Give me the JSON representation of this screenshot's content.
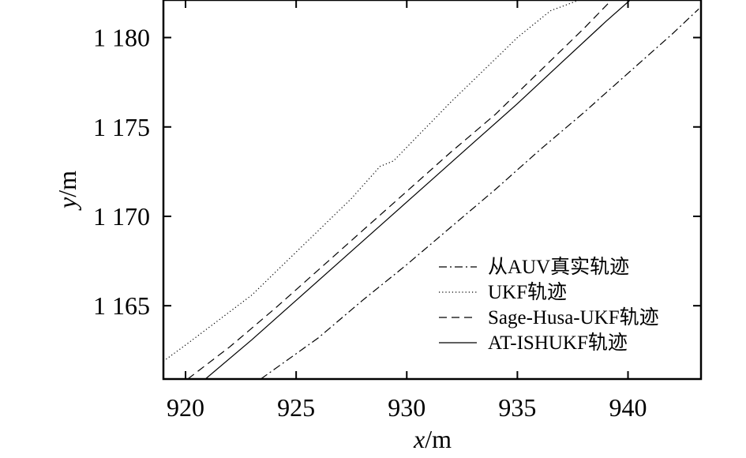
{
  "chart_data": {
    "type": "line",
    "title": "",
    "xlabel": {
      "var": "x",
      "unit": "/m"
    },
    "ylabel": {
      "var": "y",
      "unit": "/m"
    },
    "xlim": [
      919,
      943.3
    ],
    "ylim": [
      1160.9,
      1182.1
    ],
    "xticks": [
      920,
      925,
      930,
      935,
      940
    ],
    "xtick_labels": [
      "920",
      "925",
      "930",
      "935",
      "940"
    ],
    "yticks": [
      1165,
      1170,
      1175,
      1180
    ],
    "ytick_labels": [
      "1 165",
      "1 170",
      "1 175",
      "1 180"
    ],
    "grid": false,
    "legend_position": "lower-right",
    "series": [
      {
        "name": "从AUV真实轨迹",
        "style": "dashdot",
        "x": [
          923.4,
          926.0,
          928.0,
          930.0,
          932.0,
          934.0,
          936.0,
          938.0,
          940.0,
          942.0,
          943.2
        ],
        "y": [
          1160.9,
          1163.2,
          1165.3,
          1167.3,
          1169.4,
          1171.5,
          1173.7,
          1175.8,
          1178.0,
          1180.2,
          1181.6
        ]
      },
      {
        "name": "UKF轨迹",
        "style": "dotted",
        "x": [
          919.0,
          920.0,
          921.5,
          923.0,
          924.5,
          926.0,
          927.5,
          928.8,
          929.4,
          930.5,
          932.0,
          933.5,
          935.0,
          936.5,
          937.8
        ],
        "y": [
          1161.9,
          1162.8,
          1164.2,
          1165.6,
          1167.4,
          1169.2,
          1171.0,
          1172.8,
          1173.1,
          1174.5,
          1176.4,
          1178.2,
          1180.0,
          1181.5,
          1182.1
        ]
      },
      {
        "name": "Sage-Husa-UKF轨迹",
        "style": "dashed",
        "x": [
          920.1,
          922.0,
          924.0,
          926.0,
          928.0,
          930.0,
          932.0,
          934.0,
          936.0,
          938.0,
          939.1
        ],
        "y": [
          1160.9,
          1162.7,
          1164.8,
          1167.0,
          1169.2,
          1171.4,
          1173.6,
          1175.7,
          1178.1,
          1180.5,
          1181.9
        ]
      },
      {
        "name": "AT-ISHUKF轨迹",
        "style": "solid",
        "x": [
          920.9,
          923.0,
          925.0,
          927.0,
          929.0,
          931.0,
          933.0,
          935.0,
          937.0,
          939.0,
          940.1
        ],
        "y": [
          1160.9,
          1163.1,
          1165.3,
          1167.5,
          1169.7,
          1171.9,
          1174.1,
          1176.3,
          1178.6,
          1180.9,
          1182.1
        ]
      }
    ]
  }
}
